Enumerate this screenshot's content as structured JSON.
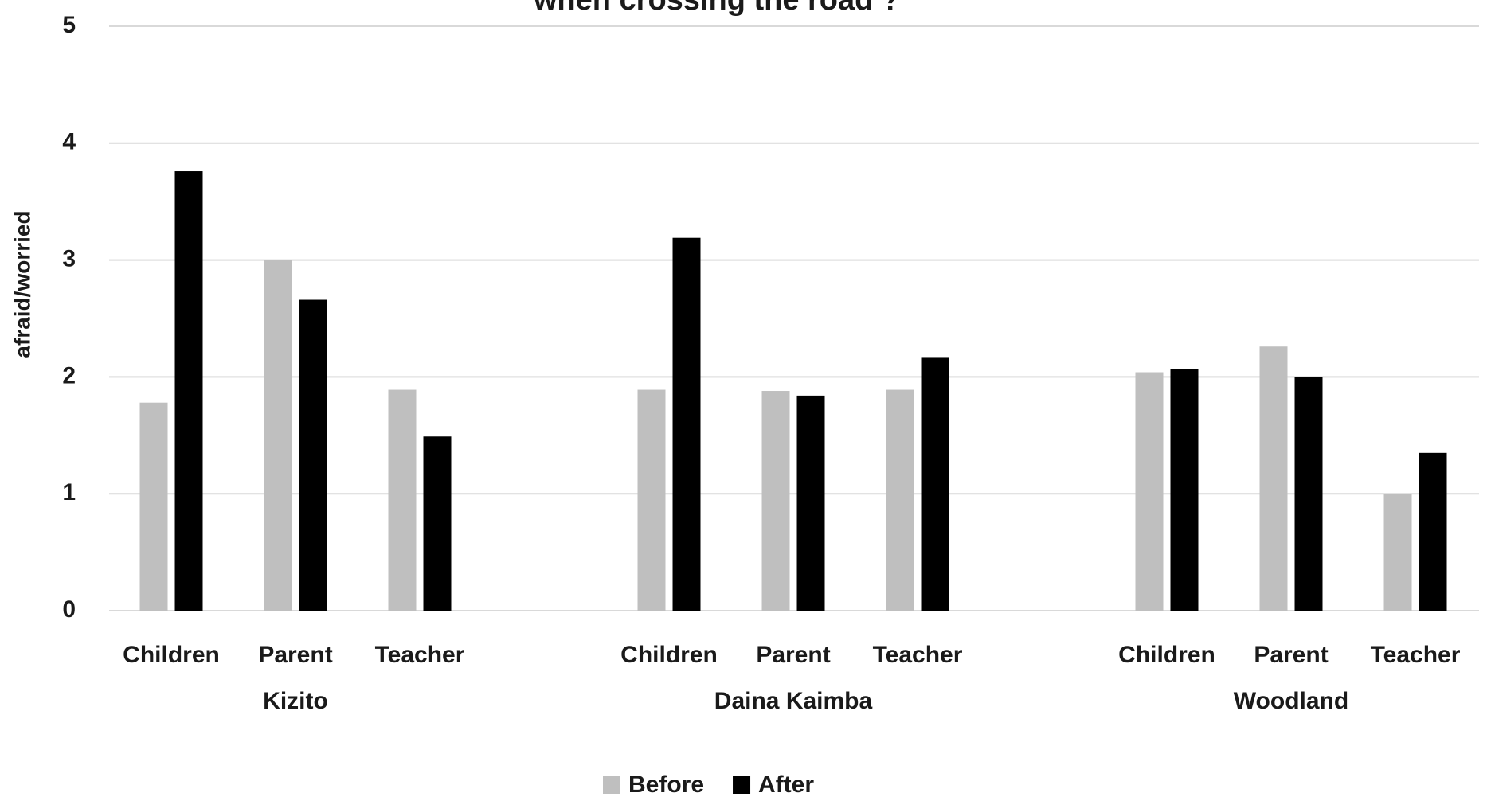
{
  "chart_data": {
    "type": "bar",
    "title": "when crossing the road ?",
    "ylabel": "afraid/worried",
    "groups": [
      "Kizito",
      "Daina Kaimba",
      "Woodland"
    ],
    "categories": [
      "Children",
      "Parent",
      "Teacher",
      "Children",
      "Parent",
      "Teacher",
      "Children",
      "Parent",
      "Teacher"
    ],
    "series": [
      {
        "name": "Before",
        "color": "#bfbfbf",
        "values": [
          1.78,
          3.0,
          1.89,
          1.89,
          1.88,
          1.89,
          2.04,
          2.26,
          1.0
        ]
      },
      {
        "name": "After",
        "color": "#000000",
        "values": [
          3.76,
          2.66,
          1.49,
          3.19,
          1.84,
          2.17,
          2.07,
          2.0,
          1.35
        ]
      }
    ],
    "ylim": [
      0,
      5
    ],
    "yticks": [
      0,
      1,
      2,
      3,
      4,
      5
    ],
    "grid": true,
    "legend": "bottom"
  }
}
